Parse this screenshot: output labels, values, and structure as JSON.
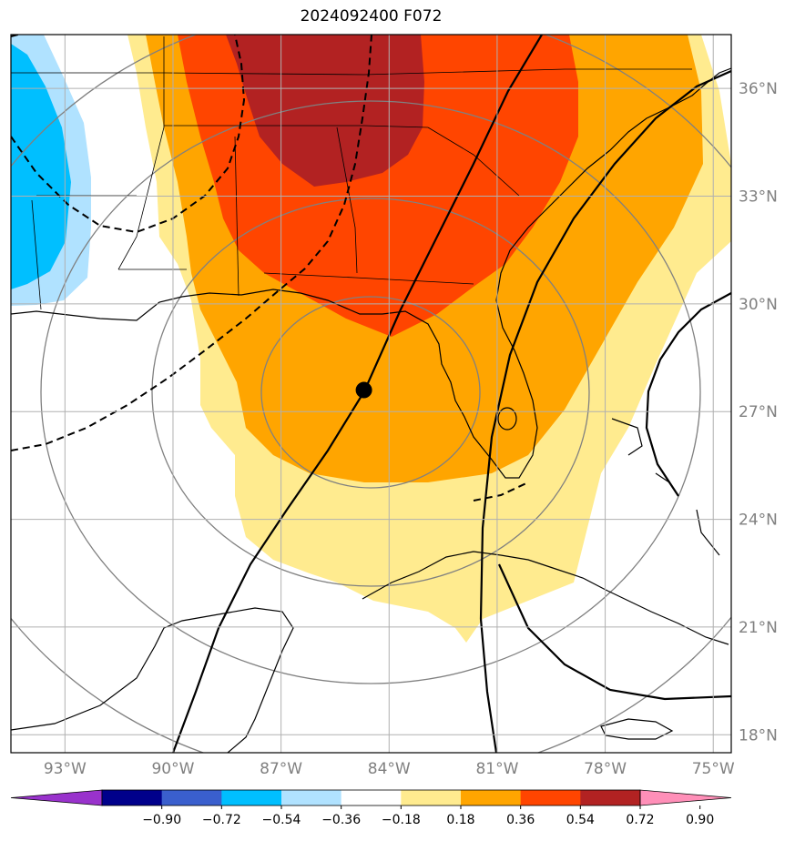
{
  "title": "2024092400 F072",
  "map": {
    "lon_range": [
      -94.5,
      -74.5
    ],
    "lat_range": [
      17.5,
      37.5
    ],
    "lon_ticks": [
      {
        "value": -93,
        "label": "93°W"
      },
      {
        "value": -90,
        "label": "90°W"
      },
      {
        "value": -87,
        "label": "87°W"
      },
      {
        "value": -84,
        "label": "84°W"
      },
      {
        "value": -81,
        "label": "81°W"
      },
      {
        "value": -78,
        "label": "78°W"
      },
      {
        "value": -75,
        "label": "75°W"
      }
    ],
    "lat_ticks": [
      {
        "value": 36,
        "label": "36°N"
      },
      {
        "value": 33,
        "label": "33°N"
      },
      {
        "value": 30,
        "label": "30°N"
      },
      {
        "value": 27,
        "label": "27°N"
      },
      {
        "value": 24,
        "label": "24°N"
      },
      {
        "value": 21,
        "label": "21°N"
      },
      {
        "value": 18,
        "label": "18°N"
      }
    ],
    "storm_center": {
      "lon": -84.7,
      "lat": 27.6
    },
    "gridline_color": "#b0b0b0",
    "range_ring_color": "#808080"
  },
  "colorbar": {
    "levels": [
      "−0.90",
      "−0.72",
      "−0.54",
      "−0.36",
      "−0.18",
      "0.18",
      "0.36",
      "0.54",
      "0.72",
      "0.90"
    ],
    "colors": [
      "#9932cc",
      "#00008b",
      "#3a5fcd",
      "#00bfff",
      "#b0e2ff",
      "#ffffff",
      "#ffeb8f",
      "#ffa500",
      "#ff4500",
      "#b22222",
      "#ff8fb8"
    ]
  },
  "colors": {
    "yellow": "#ffeb8f",
    "orange": "#ffa500",
    "red_orange": "#ff4500",
    "dark_red": "#b22222",
    "light_blue": "#b0e2ff",
    "sky_blue": "#00bfff"
  }
}
